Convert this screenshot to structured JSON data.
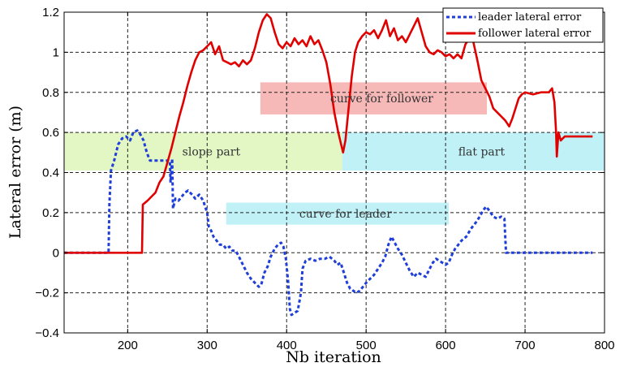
{
  "chart_data": {
    "type": "line",
    "title": "",
    "xlabel": "Nb iteration",
    "ylabel": "Lateral error (m)",
    "xlim": [
      120,
      800
    ],
    "ylim": [
      -0.4,
      1.2
    ],
    "x_ticks": [
      200,
      300,
      400,
      500,
      600,
      700,
      800
    ],
    "y_ticks": [
      -0.4,
      -0.2,
      0,
      0.2,
      0.4,
      0.6,
      0.8,
      1,
      1.2
    ],
    "grid": true,
    "legend_position": "top-right",
    "colors": {
      "leader": "#1f3fd8",
      "follower": "#e00000",
      "slope": "#e2f7c4",
      "flat": "#bff1f7",
      "curve_follower": "#f7b8b8",
      "curve_leader": "#bff1f7"
    },
    "regions": [
      {
        "label": "curve for follower",
        "x": [
          367,
          652
        ],
        "y": [
          0.69,
          0.85
        ],
        "color_key": "curve_follower"
      },
      {
        "label": "slope part",
        "x": [
          120,
          470
        ],
        "y": [
          0.41,
          0.6
        ],
        "color_key": "slope"
      },
      {
        "label": "flat part",
        "x": [
          470,
          800
        ],
        "y": [
          0.41,
          0.6
        ],
        "color_key": "flat"
      },
      {
        "label": "curve for leader",
        "x": [
          324,
          604
        ],
        "y": [
          0.14,
          0.25
        ],
        "color_key": "curve_leader"
      }
    ],
    "series": [
      {
        "name": "leader lateral error",
        "style": "dashed",
        "color_key": "leader",
        "points": [
          [
            120,
            0
          ],
          [
            176,
            0
          ],
          [
            177,
            0.24
          ],
          [
            179,
            0.41
          ],
          [
            183,
            0.46
          ],
          [
            188,
            0.54
          ],
          [
            193,
            0.57
          ],
          [
            198,
            0.58
          ],
          [
            203,
            0.56
          ],
          [
            207,
            0.6
          ],
          [
            212,
            0.61
          ],
          [
            216,
            0.59
          ],
          [
            220,
            0.56
          ],
          [
            224,
            0.5
          ],
          [
            228,
            0.46
          ],
          [
            235,
            0.46
          ],
          [
            245,
            0.46
          ],
          [
            253,
            0.46
          ],
          [
            254,
            0.35
          ],
          [
            256,
            0.47
          ],
          [
            257,
            0.22
          ],
          [
            260,
            0.27
          ],
          [
            264,
            0.26
          ],
          [
            268,
            0.28
          ],
          [
            272,
            0.3
          ],
          [
            276,
            0.31
          ],
          [
            281,
            0.29
          ],
          [
            285,
            0.27
          ],
          [
            290,
            0.29
          ],
          [
            295,
            0.26
          ],
          [
            300,
            0.2
          ],
          [
            302,
            0.13
          ],
          [
            305,
            0.11
          ],
          [
            308,
            0.08
          ],
          [
            312,
            0.06
          ],
          [
            316,
            0.04
          ],
          [
            320,
            0.04
          ],
          [
            324,
            0.02
          ],
          [
            328,
            0.03
          ],
          [
            332,
            0.01
          ],
          [
            336,
            0.01
          ],
          [
            340,
            -0.02
          ],
          [
            345,
            -0.06
          ],
          [
            350,
            -0.1
          ],
          [
            355,
            -0.13
          ],
          [
            360,
            -0.15
          ],
          [
            365,
            -0.17
          ],
          [
            368,
            -0.16
          ],
          [
            372,
            -0.1
          ],
          [
            376,
            -0.07
          ],
          [
            380,
            -0.02
          ],
          [
            385,
            0.02
          ],
          [
            389,
            0.04
          ],
          [
            393,
            0.05
          ],
          [
            396,
            0.03
          ],
          [
            399,
            -0.03
          ],
          [
            402,
            -0.15
          ],
          [
            404,
            -0.28
          ],
          [
            406,
            -0.31
          ],
          [
            410,
            -0.3
          ],
          [
            414,
            -0.29
          ],
          [
            418,
            -0.2
          ],
          [
            420,
            -0.08
          ],
          [
            424,
            -0.04
          ],
          [
            430,
            -0.03
          ],
          [
            436,
            -0.04
          ],
          [
            442,
            -0.03
          ],
          [
            448,
            -0.03
          ],
          [
            454,
            -0.02
          ],
          [
            460,
            -0.04
          ],
          [
            464,
            -0.06
          ],
          [
            468,
            -0.05
          ],
          [
            472,
            -0.1
          ],
          [
            476,
            -0.15
          ],
          [
            480,
            -0.18
          ],
          [
            484,
            -0.19
          ],
          [
            488,
            -0.2
          ],
          [
            492,
            -0.19
          ],
          [
            496,
            -0.17
          ],
          [
            500,
            -0.15
          ],
          [
            505,
            -0.13
          ],
          [
            510,
            -0.11
          ],
          [
            515,
            -0.08
          ],
          [
            520,
            -0.05
          ],
          [
            524,
            -0.02
          ],
          [
            528,
            0.04
          ],
          [
            532,
            0.08
          ],
          [
            536,
            0.05
          ],
          [
            540,
            0.02
          ],
          [
            545,
            -0.01
          ],
          [
            550,
            -0.05
          ],
          [
            555,
            -0.09
          ],
          [
            560,
            -0.12
          ],
          [
            565,
            -0.1
          ],
          [
            570,
            -0.11
          ],
          [
            575,
            -0.12
          ],
          [
            580,
            -0.08
          ],
          [
            584,
            -0.05
          ],
          [
            588,
            -0.03
          ],
          [
            592,
            -0.04
          ],
          [
            596,
            -0.05
          ],
          [
            600,
            -0.06
          ],
          [
            604,
            -0.05
          ],
          [
            608,
            -0.01
          ],
          [
            612,
            0.02
          ],
          [
            616,
            0.04
          ],
          [
            620,
            0.06
          ],
          [
            626,
            0.08
          ],
          [
            632,
            0.12
          ],
          [
            638,
            0.15
          ],
          [
            643,
            0.18
          ],
          [
            647,
            0.21
          ],
          [
            651,
            0.23
          ],
          [
            655,
            0.21
          ],
          [
            660,
            0.18
          ],
          [
            665,
            0.17
          ],
          [
            670,
            0.18
          ],
          [
            674,
            0.17
          ],
          [
            676,
            0.0
          ],
          [
            740,
            0.0
          ],
          [
            785,
            0.0
          ]
        ]
      },
      {
        "name": "follower lateral error",
        "style": "solid",
        "color_key": "follower",
        "points": [
          [
            120,
            0
          ],
          [
            218,
            0
          ],
          [
            219,
            0.24
          ],
          [
            225,
            0.26
          ],
          [
            230,
            0.28
          ],
          [
            235,
            0.3
          ],
          [
            240,
            0.35
          ],
          [
            245,
            0.38
          ],
          [
            250,
            0.45
          ],
          [
            255,
            0.52
          ],
          [
            260,
            0.6
          ],
          [
            265,
            0.68
          ],
          [
            270,
            0.75
          ],
          [
            275,
            0.83
          ],
          [
            280,
            0.9
          ],
          [
            285,
            0.96
          ],
          [
            290,
            1.0
          ],
          [
            295,
            1.01
          ],
          [
            300,
            1.03
          ],
          [
            305,
            1.05
          ],
          [
            310,
            0.99
          ],
          [
            315,
            1.03
          ],
          [
            320,
            0.96
          ],
          [
            325,
            0.95
          ],
          [
            330,
            0.94
          ],
          [
            335,
            0.95
          ],
          [
            340,
            0.93
          ],
          [
            345,
            0.96
          ],
          [
            350,
            0.94
          ],
          [
            355,
            0.96
          ],
          [
            360,
            1.02
          ],
          [
            365,
            1.1
          ],
          [
            370,
            1.16
          ],
          [
            375,
            1.19
          ],
          [
            380,
            1.17
          ],
          [
            385,
            1.1
          ],
          [
            390,
            1.04
          ],
          [
            395,
            1.02
          ],
          [
            400,
            1.05
          ],
          [
            405,
            1.03
          ],
          [
            410,
            1.07
          ],
          [
            415,
            1.04
          ],
          [
            420,
            1.06
          ],
          [
            425,
            1.03
          ],
          [
            430,
            1.08
          ],
          [
            435,
            1.04
          ],
          [
            440,
            1.06
          ],
          [
            445,
            1.01
          ],
          [
            450,
            0.95
          ],
          [
            455,
            0.84
          ],
          [
            460,
            0.7
          ],
          [
            465,
            0.6
          ],
          [
            468,
            0.55
          ],
          [
            471,
            0.5
          ],
          [
            474,
            0.56
          ],
          [
            478,
            0.72
          ],
          [
            482,
            0.88
          ],
          [
            486,
            1.0
          ],
          [
            490,
            1.05
          ],
          [
            495,
            1.08
          ],
          [
            500,
            1.1
          ],
          [
            505,
            1.09
          ],
          [
            510,
            1.11
          ],
          [
            515,
            1.07
          ],
          [
            520,
            1.11
          ],
          [
            525,
            1.16
          ],
          [
            530,
            1.08
          ],
          [
            535,
            1.12
          ],
          [
            540,
            1.06
          ],
          [
            545,
            1.08
          ],
          [
            550,
            1.05
          ],
          [
            555,
            1.09
          ],
          [
            560,
            1.13
          ],
          [
            565,
            1.17
          ],
          [
            570,
            1.1
          ],
          [
            575,
            1.03
          ],
          [
            580,
            1.0
          ],
          [
            585,
            0.99
          ],
          [
            590,
            1.01
          ],
          [
            595,
            1.0
          ],
          [
            600,
            0.98
          ],
          [
            605,
            0.99
          ],
          [
            610,
            0.97
          ],
          [
            615,
            0.99
          ],
          [
            620,
            0.97
          ],
          [
            625,
            1.04
          ],
          [
            630,
            1.07
          ],
          [
            635,
            1.05
          ],
          [
            640,
            0.96
          ],
          [
            645,
            0.86
          ],
          [
            650,
            0.82
          ],
          [
            655,
            0.78
          ],
          [
            660,
            0.72
          ],
          [
            665,
            0.7
          ],
          [
            670,
            0.68
          ],
          [
            675,
            0.66
          ],
          [
            680,
            0.63
          ],
          [
            684,
            0.67
          ],
          [
            688,
            0.72
          ],
          [
            692,
            0.77
          ],
          [
            696,
            0.79
          ],
          [
            700,
            0.8
          ],
          [
            710,
            0.79
          ],
          [
            720,
            0.8
          ],
          [
            730,
            0.8
          ],
          [
            734,
            0.82
          ],
          [
            737,
            0.75
          ],
          [
            739,
            0.6
          ],
          [
            740,
            0.48
          ],
          [
            742,
            0.6
          ],
          [
            745,
            0.56
          ],
          [
            750,
            0.58
          ],
          [
            760,
            0.58
          ],
          [
            770,
            0.58
          ],
          [
            785,
            0.58
          ]
        ]
      }
    ]
  }
}
